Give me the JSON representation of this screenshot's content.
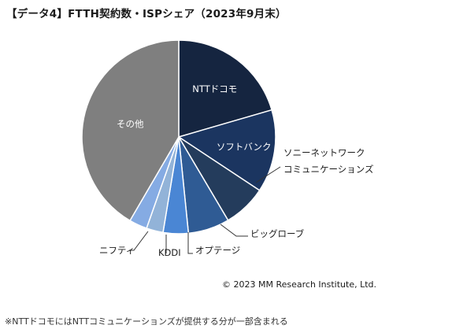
{
  "title": "【データ4】FTTH契約数・ISPシェア（2023年9月末）",
  "copyright": "© 2023 MM Research Institute, Ltd.",
  "footnote": "※NTTドコモにはNTTコミュニケーションズが提供する分が一部含まれる",
  "chart_data": {
    "type": "pie",
    "title": "【データ4】FTTH契約数・ISPシェア（2023年9月末）",
    "start_angle_deg": 0,
    "direction": "clockwise",
    "slices": [
      {
        "label": "NTTドコモ",
        "value": 20.5,
        "color": "#152540"
      },
      {
        "label": "ソフトバンク",
        "value": 13.8,
        "color": "#1b3560"
      },
      {
        "label": "ソニーネットワーク\nコミュニケーションズ",
        "value": 7.2,
        "color": "#243c5c"
      },
      {
        "label": "ビッグローブ",
        "value": 6.9,
        "color": "#2f5b94"
      },
      {
        "label": "オプテージ",
        "value": 4.2,
        "color": "#4a86d4"
      },
      {
        "label": "KDDI",
        "value": 2.8,
        "color": "#92b3d8"
      },
      {
        "label": "ニフティ",
        "value": 3.0,
        "color": "#85abe3"
      },
      {
        "label": "その他",
        "value": 41.6,
        "color": "#7f7f7f"
      }
    ]
  }
}
